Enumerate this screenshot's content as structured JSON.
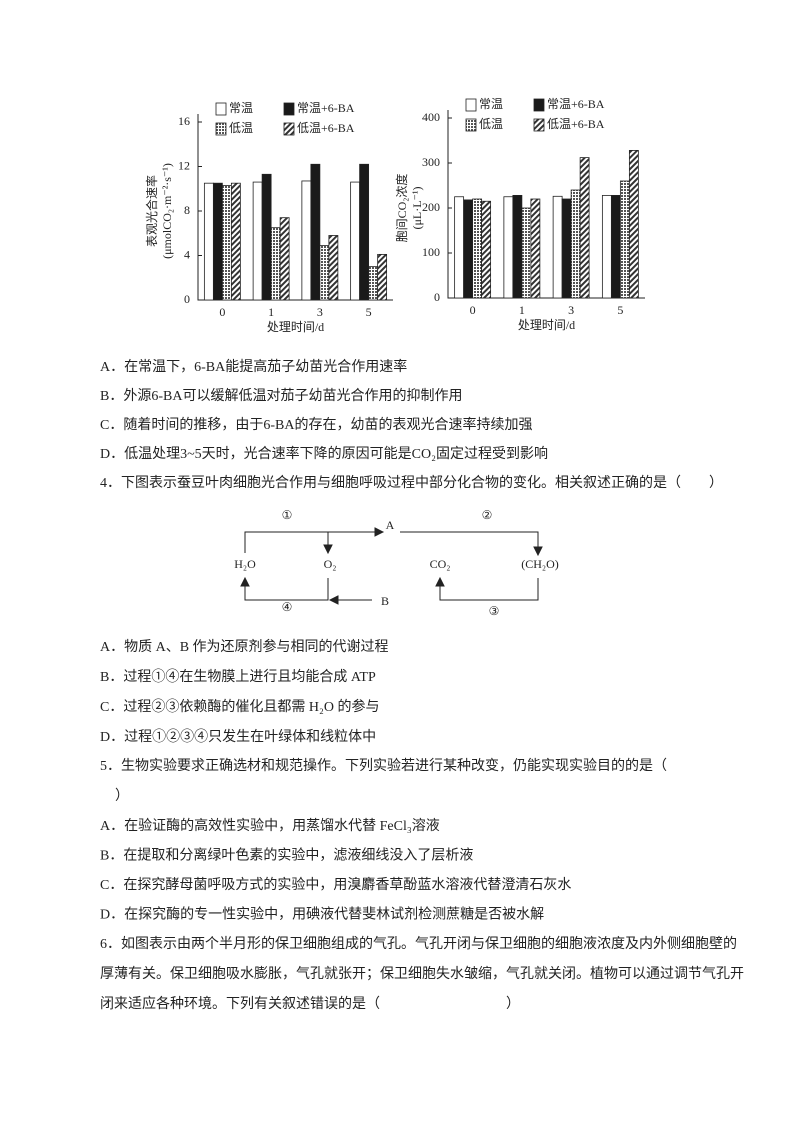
{
  "chart_data": [
    {
      "type": "bar",
      "ylabel": "表观光合速率",
      "ylabel_unit": "(μmolCO₂·m⁻²·s⁻¹)",
      "xlabel": "处理时间/d",
      "categories": [
        "0",
        "1",
        "3",
        "5"
      ],
      "ylim": [
        0,
        16
      ],
      "yticks": [
        0,
        4,
        8,
        12,
        16
      ],
      "series": [
        {
          "name": "常温",
          "color": "#ffffff",
          "fill": "solid",
          "values": [
            10.5,
            10.6,
            10.7,
            10.6
          ]
        },
        {
          "name": "常温+6-BA",
          "color": "#1a1a1a",
          "fill": "solid",
          "values": [
            10.5,
            11.3,
            12.2,
            12.2
          ]
        },
        {
          "name": "低温",
          "color": "#9a9a9a",
          "fill": "dots",
          "values": [
            10.3,
            6.5,
            4.9,
            3.0
          ]
        },
        {
          "name": "低温+6-BA",
          "color": "#777777",
          "fill": "hatch",
          "values": [
            10.5,
            7.4,
            5.8,
            4.1
          ]
        }
      ]
    },
    {
      "type": "bar",
      "ylabel": "胞间CO₂浓度",
      "ylabel_unit": "(μL·L⁻¹)",
      "xlabel": "处理时间/d",
      "categories": [
        "0",
        "1",
        "3",
        "5"
      ],
      "ylim": [
        0,
        400
      ],
      "yticks": [
        0,
        100,
        200,
        300,
        400
      ],
      "series": [
        {
          "name": "常温",
          "color": "#ffffff",
          "fill": "solid",
          "values": [
            225,
            225,
            226,
            228
          ]
        },
        {
          "name": "常温+6-BA",
          "color": "#1a1a1a",
          "fill": "solid",
          "values": [
            218,
            228,
            220,
            228
          ]
        },
        {
          "name": "低温",
          "color": "#9a9a9a",
          "fill": "dots",
          "values": [
            220,
            200,
            240,
            260
          ]
        },
        {
          "name": "低温+6-BA",
          "color": "#777777",
          "fill": "hatch",
          "values": [
            215,
            220,
            312,
            328
          ]
        }
      ]
    }
  ],
  "q3": {
    "options": [
      "A．在常温下，6-BA能提高茄子幼苗光合作用速率",
      "B．外源6-BA可以缓解低温对茄子幼苗光合作用的抑制作用",
      "C．随着时间的推移，由于6-BA的存在，幼苗的表观光合速率持续加强",
      "D．低温处理3~5天时，光合速率下降的原因可能是CO₂固定过程受到影响"
    ]
  },
  "q4": {
    "stem": "4．下图表示蚕豆叶肉细胞光合作用与细胞呼吸过程中部分化合物的变化。相关叙述正确的是（　　）",
    "diagram": {
      "step1": "①",
      "step2": "②",
      "step3": "③",
      "step4": "④",
      "a": "A",
      "b": "B",
      "h2o": "H₂O",
      "o2": "O₂",
      "co2": "CO₂",
      "ch2o": "(CH₂O)"
    },
    "options": [
      "A．物质 A、B 作为还原剂参与相同的代谢过程",
      "B．过程①④在生物膜上进行且均能合成 ATP",
      "C．过程②③依赖酶的催化且都需 H₂O 的参与",
      "D．过程①②③④只发生在叶绿体和线粒体中"
    ]
  },
  "q5": {
    "stem": [
      "5．生物实验要求正确选材和规范操作。下列实验若进行某种改变，仍能实现实验目的的是（",
      "）"
    ],
    "options": [
      "A．在验证酶的高效性实验中，用蒸馏水代替 FeCl₃溶液",
      "B．在提取和分离绿叶色素的实验中，滤液细线没入了层析液",
      "C．在探究酵母菌呼吸方式的实验中，用溴麝香草酚蓝水溶液代替澄清石灰水",
      "D．在探究酶的专一性实验中，用碘液代替斐林试剂检测蔗糖是否被水解"
    ]
  },
  "q6": {
    "stem": [
      "6．如图表示由两个半月形的保卫细胞组成的气孔。气孔开闭与保卫细胞的细胞液浓度及内外侧细胞壁的",
      "厚薄有关。保卫细胞吸水膨胀，气孔就张开；保卫细胞失水皱缩，气孔就关闭。植物可以通过调节气孔开",
      "闭来适应各种环境。下列有关叙述错误的是（　　　　　　　　　）"
    ]
  }
}
